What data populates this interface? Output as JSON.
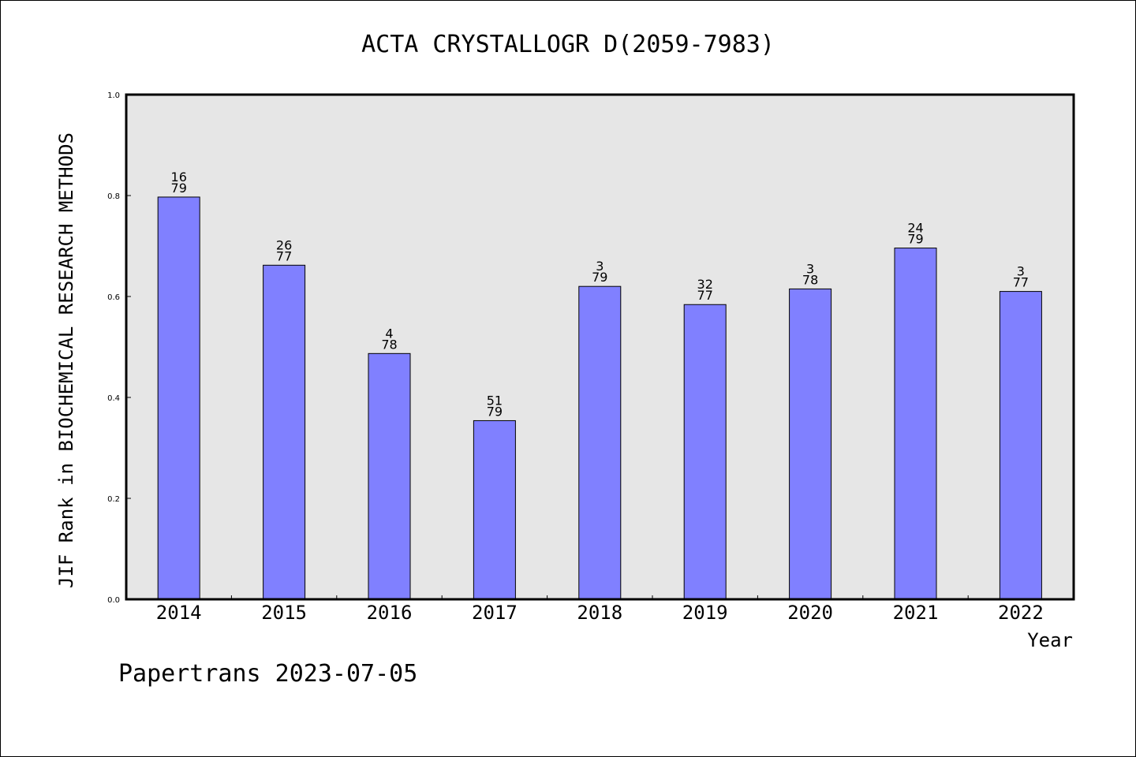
{
  "chart_data": {
    "type": "bar",
    "title": "ACTA CRYSTALLOGR D(2059-7983)",
    "xlabel": "Year",
    "ylabel": "JIF Rank in BIOCHEMICAL RESEARCH METHODS",
    "ylim": [
      0,
      1.0
    ],
    "yticks": [
      "0.0",
      "0.2",
      "0.4",
      "0.6",
      "0.8",
      "1.0"
    ],
    "categories": [
      "2014",
      "2015",
      "2016",
      "2017",
      "2018",
      "2019",
      "2020",
      "2021",
      "2022"
    ],
    "values": [
      0.797,
      0.662,
      0.487,
      0.354,
      0.62,
      0.584,
      0.615,
      0.696,
      0.61
    ],
    "rank_labels": [
      {
        "rank": "16",
        "total": "79"
      },
      {
        "rank": "26",
        "total": "77"
      },
      {
        "rank": "4",
        "total": "78"
      },
      {
        "rank": "51",
        "total": "79"
      },
      {
        "rank": "3",
        "total": "79"
      },
      {
        "rank": "32",
        "total": "77"
      },
      {
        "rank": "3",
        "total": "78"
      },
      {
        "rank": "24",
        "total": "79"
      },
      {
        "rank": "3",
        "total": "77"
      }
    ],
    "bar_color": "#8080ff",
    "plot_background": "#e6e6e6",
    "grid": false
  },
  "footer": "Papertrans 2023-07-05"
}
